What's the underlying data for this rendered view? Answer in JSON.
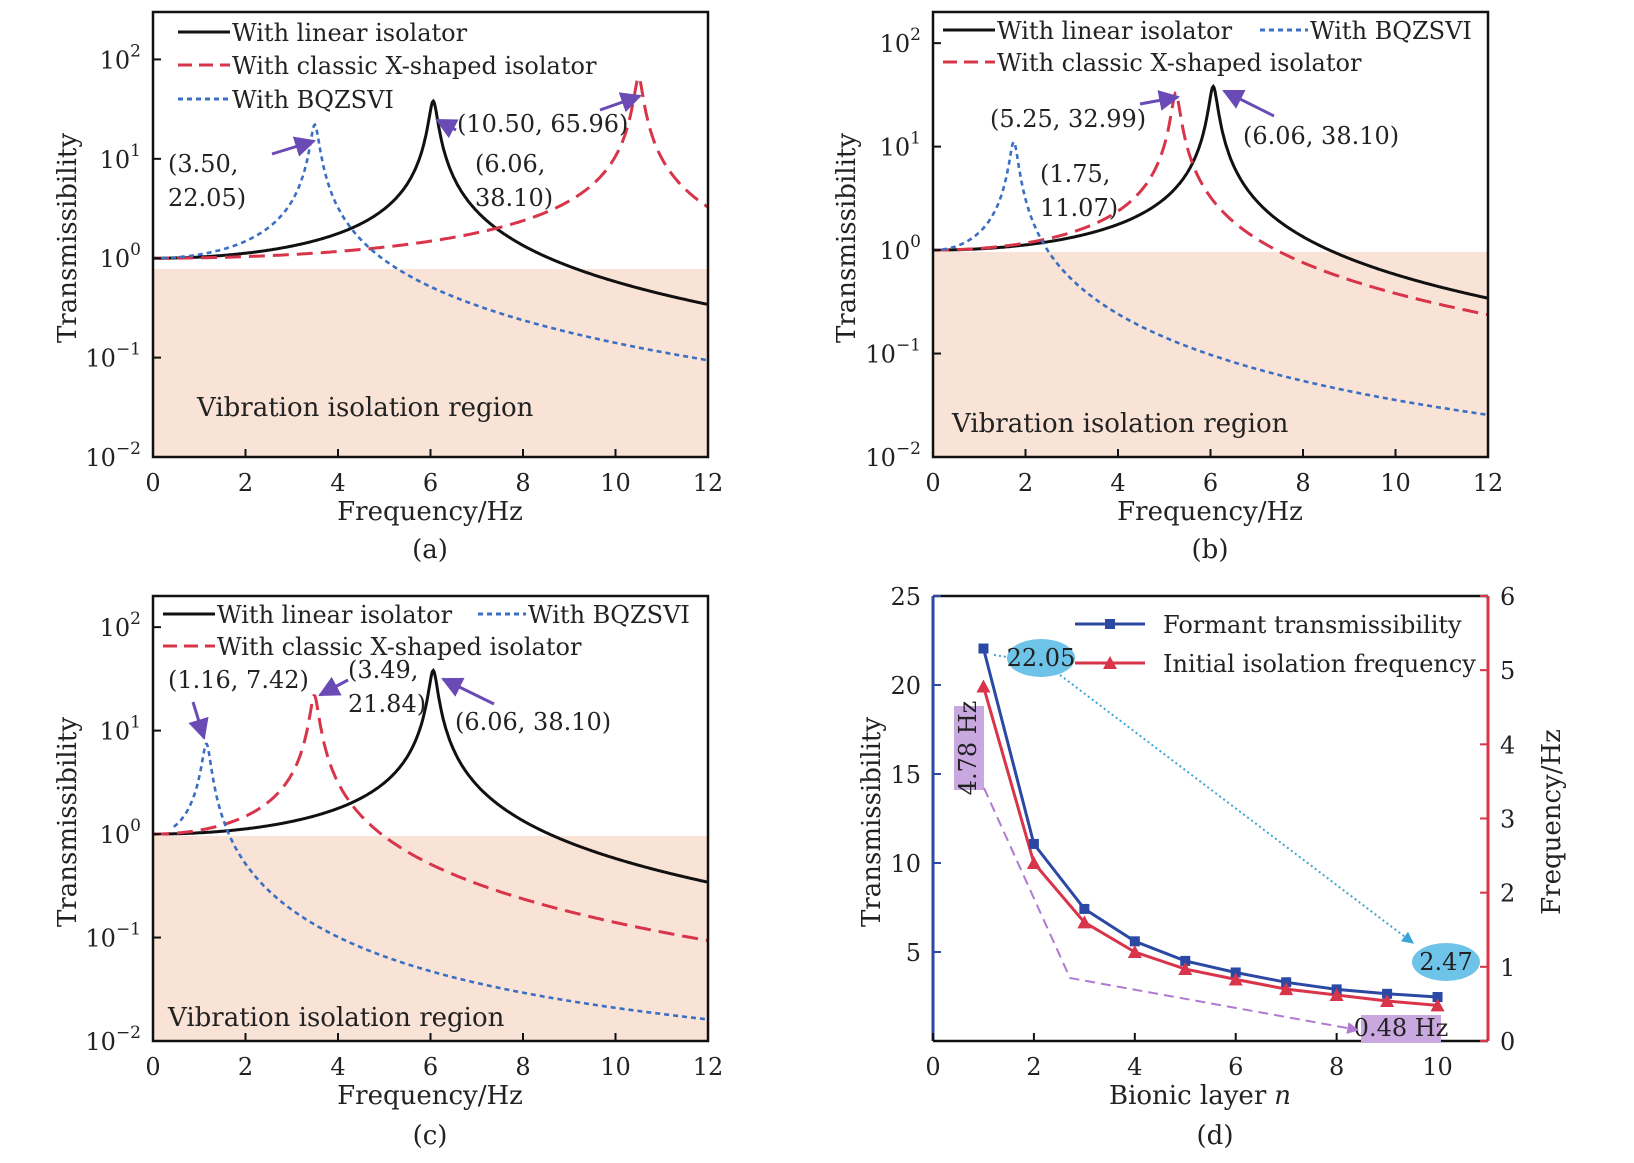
{
  "colors": {
    "linear": "#111111",
    "classic": "#d8344a",
    "bqzsvi": "#3a6fc3",
    "region": "#f8e3d6",
    "arrow": "#6a4bb5",
    "blue_axis": "#2b49a4",
    "red_axis": "#d8344a",
    "cyan": "#6ec3e8",
    "purple": "#c9a8e0"
  },
  "chart_data": [
    {
      "id": "a",
      "type": "line",
      "caption": "(a)",
      "xlabel": "Frequency/Hz",
      "ylabel": "Transmissibility",
      "xlim": [
        0,
        12
      ],
      "ylim": [
        0.01,
        300
      ],
      "yscale": "log",
      "xticks": [
        "0",
        "2",
        "4",
        "6",
        "8",
        "10",
        "12"
      ],
      "yticks": [
        {
          "base": "10",
          "exp": "2"
        },
        {
          "base": "10",
          "exp": "1"
        },
        {
          "base": "10",
          "exp": "0"
        },
        {
          "base": "10",
          "exp": "−1"
        },
        {
          "base": "10",
          "exp": "−2"
        }
      ],
      "region_label": "Vibration isolation region",
      "legend": [
        "With linear isolator",
        "With classic X-shaped isolator",
        "With BQZSVI"
      ],
      "series": [
        {
          "name": "With linear isolator",
          "fn": 6.06,
          "peak": 38.1
        },
        {
          "name": "With classic X-shaped isolator",
          "fn": 10.5,
          "peak": 65.96
        },
        {
          "name": "With BQZSVI",
          "fn": 3.5,
          "peak": 22.05
        }
      ],
      "annotations": [
        {
          "lines": [
            "(3.50,",
            "22.05)"
          ]
        },
        {
          "lines": [
            "(10.50, 65.96)"
          ]
        },
        {
          "lines": [
            "(6.06,",
            "38.10)"
          ]
        }
      ]
    },
    {
      "id": "b",
      "type": "line",
      "caption": "(b)",
      "xlabel": "Frequency/Hz",
      "ylabel": "Transmissibility",
      "xlim": [
        0,
        12
      ],
      "ylim": [
        0.01,
        200
      ],
      "yscale": "log",
      "xticks": [
        "0",
        "2",
        "4",
        "6",
        "8",
        "10",
        "12"
      ],
      "yticks": [
        {
          "base": "10",
          "exp": "2"
        },
        {
          "base": "10",
          "exp": "1"
        },
        {
          "base": "10",
          "exp": "0"
        },
        {
          "base": "10",
          "exp": "−1"
        },
        {
          "base": "10",
          "exp": "−2"
        }
      ],
      "region_label": "Vibration isolation region",
      "legend": [
        "With linear isolator",
        "With BQZSVI",
        "With classic X-shaped isolator"
      ],
      "series": [
        {
          "name": "With linear isolator",
          "fn": 6.06,
          "peak": 38.1
        },
        {
          "name": "With classic X-shaped isolator",
          "fn": 5.25,
          "peak": 32.99
        },
        {
          "name": "With BQZSVI",
          "fn": 1.75,
          "peak": 11.07
        }
      ],
      "annotations": [
        {
          "lines": [
            "(5.25, 32.99)"
          ]
        },
        {
          "lines": [
            "(1.75,",
            "11.07)"
          ]
        },
        {
          "lines": [
            "(6.06, 38.10)"
          ]
        }
      ]
    },
    {
      "id": "c",
      "type": "line",
      "caption": "(c)",
      "xlabel": "Frequency/Hz",
      "ylabel": "Transmissibility",
      "xlim": [
        0,
        12
      ],
      "ylim": [
        0.01,
        200
      ],
      "yscale": "log",
      "xticks": [
        "0",
        "2",
        "4",
        "6",
        "8",
        "10",
        "12"
      ],
      "yticks": [
        {
          "base": "10",
          "exp": "2"
        },
        {
          "base": "10",
          "exp": "1"
        },
        {
          "base": "10",
          "exp": "0"
        },
        {
          "base": "10",
          "exp": "−1"
        },
        {
          "base": "10",
          "exp": "−2"
        }
      ],
      "region_label": "Vibration isolation region",
      "legend": [
        "With linear isolator",
        "With BQZSVI",
        "With classic X-shaped isolator"
      ],
      "series": [
        {
          "name": "With linear isolator",
          "fn": 6.06,
          "peak": 38.1
        },
        {
          "name": "With classic X-shaped isolator",
          "fn": 3.49,
          "peak": 21.84
        },
        {
          "name": "With BQZSVI",
          "fn": 1.16,
          "peak": 7.42
        }
      ],
      "annotations": [
        {
          "lines": [
            "(1.16, 7.42)"
          ]
        },
        {
          "lines": [
            "(3.49,",
            "21.84)"
          ]
        },
        {
          "lines": [
            "(6.06, 38.10)"
          ]
        }
      ]
    },
    {
      "id": "d",
      "type": "line",
      "caption": "(d)",
      "xlabel": "Bionic layer",
      "xlabel_var": "n",
      "ylabel": "Transmissibility",
      "ylabel_right": "Frequency/Hz",
      "xlim": [
        0,
        11
      ],
      "ylim": [
        0,
        25
      ],
      "ylim_right": [
        0,
        6
      ],
      "xticks": [
        "0",
        "2",
        "4",
        "6",
        "8",
        "10"
      ],
      "yticks": [
        "5",
        "10",
        "15",
        "20",
        "25"
      ],
      "yticks_right": [
        "0",
        "1",
        "2",
        "3",
        "4",
        "5",
        "6"
      ],
      "x": [
        1,
        2,
        3,
        4,
        5,
        6,
        7,
        8,
        9,
        10
      ],
      "series": [
        {
          "name": "Formant transmissibility",
          "axis": "left",
          "values": [
            22.05,
            11.07,
            7.42,
            5.6,
            4.5,
            3.85,
            3.3,
            2.9,
            2.65,
            2.47
          ]
        },
        {
          "name": "Initial isolation frequency",
          "axis": "right",
          "values": [
            4.78,
            2.4,
            1.6,
            1.2,
            0.97,
            0.83,
            0.7,
            0.62,
            0.54,
            0.48
          ]
        }
      ],
      "callouts": [
        "22.05",
        "2.47",
        "4.78 Hz",
        "0.48 Hz"
      ]
    }
  ]
}
